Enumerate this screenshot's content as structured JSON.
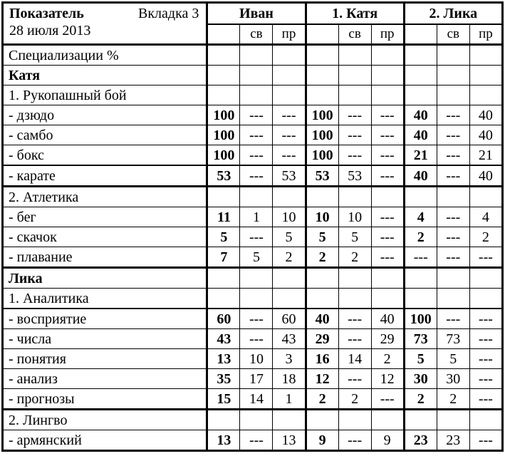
{
  "header": {
    "title": "Показатель",
    "tab": "Вкладка 3",
    "date": "28 июля 2013",
    "groups": [
      "Иван",
      "1. Катя",
      "2. Лика"
    ],
    "sub_col_1": "св",
    "sub_col_2": "пр"
  },
  "rows": [
    {
      "label": "Специализации %",
      "style": "plain",
      "border": "normal",
      "values": [
        "",
        "",
        "",
        "",
        "",
        "",
        "",
        "",
        ""
      ]
    },
    {
      "label": "Катя",
      "style": "bold",
      "border": "normal",
      "values": [
        "",
        "",
        "",
        "",
        "",
        "",
        "",
        "",
        ""
      ]
    },
    {
      "label": "1. Рукопашный бой",
      "style": "plain",
      "border": "normal",
      "values": [
        "",
        "",
        "",
        "",
        "",
        "",
        "",
        "",
        ""
      ]
    },
    {
      "label": "- дзюдо",
      "style": "plain",
      "border": "normal",
      "values": [
        "100",
        "---",
        "---",
        "100",
        "---",
        "---",
        "40",
        "---",
        "40"
      ]
    },
    {
      "label": "- самбо",
      "style": "plain",
      "border": "normal",
      "values": [
        "100",
        "---",
        "---",
        "100",
        "---",
        "---",
        "40",
        "---",
        "40"
      ]
    },
    {
      "label": "- бокс",
      "style": "plain",
      "border": "normal",
      "values": [
        "100",
        "---",
        "---",
        "100",
        "---",
        "---",
        "21",
        "---",
        "21"
      ]
    },
    {
      "label": "- карате",
      "style": "plain",
      "border": "medium",
      "values": [
        "53",
        "---",
        "53",
        "53",
        "53",
        "---",
        "40",
        "---",
        "40"
      ]
    },
    {
      "label": "2. Атлетика",
      "style": "plain",
      "border": "thick",
      "values": [
        "",
        "",
        "",
        "",
        "",
        "",
        "",
        "",
        ""
      ]
    },
    {
      "label": "- бег",
      "style": "plain",
      "border": "normal",
      "values": [
        "11",
        "1",
        "10",
        "10",
        "10",
        "---",
        "4",
        "---",
        "4"
      ]
    },
    {
      "label": "- скачок",
      "style": "plain",
      "border": "normal",
      "values": [
        "5",
        "---",
        "5",
        "5",
        "5",
        "---",
        "2",
        "---",
        "2"
      ]
    },
    {
      "label": "- плавание",
      "style": "plain",
      "border": "normal",
      "values": [
        "7",
        "5",
        "2",
        "2",
        "2",
        "---",
        "---",
        "---",
        "---"
      ]
    },
    {
      "label": "Лика",
      "style": "bold",
      "border": "thick",
      "values": [
        "",
        "",
        "",
        "",
        "",
        "",
        "",
        "",
        ""
      ]
    },
    {
      "label": "1. Аналитика",
      "style": "plain",
      "border": "normal",
      "values": [
        "",
        "",
        "",
        "",
        "",
        "",
        "",
        "",
        ""
      ]
    },
    {
      "label": "- восприятие",
      "style": "plain",
      "border": "medium",
      "values": [
        "60",
        "---",
        "60",
        "40",
        "---",
        "40",
        "100",
        "---",
        "---"
      ]
    },
    {
      "label": "- числа",
      "style": "plain",
      "border": "normal",
      "values": [
        "43",
        "---",
        "43",
        "29",
        "---",
        "29",
        "73",
        "73",
        "---"
      ]
    },
    {
      "label": "- понятия",
      "style": "plain",
      "border": "normal",
      "values": [
        "13",
        "10",
        "3",
        "16",
        "14",
        "2",
        "5",
        "5",
        "---"
      ]
    },
    {
      "label": "- анализ",
      "style": "plain",
      "border": "normal",
      "values": [
        "35",
        "17",
        "18",
        "12",
        "---",
        "12",
        "30",
        "30",
        "---"
      ]
    },
    {
      "label": "- прогнозы",
      "style": "plain",
      "border": "normal",
      "values": [
        "15",
        "14",
        "1",
        "2",
        "2",
        "---",
        "2",
        "2",
        "---"
      ]
    },
    {
      "label": "2. Лингво",
      "style": "plain",
      "border": "thick",
      "values": [
        "",
        "",
        "",
        "",
        "",
        "",
        "",
        "",
        ""
      ]
    },
    {
      "label": "- армянский",
      "style": "plain",
      "border": "normal",
      "values": [
        "13",
        "---",
        "13",
        "9",
        "---",
        "9",
        "23",
        "23",
        "---"
      ]
    }
  ]
}
